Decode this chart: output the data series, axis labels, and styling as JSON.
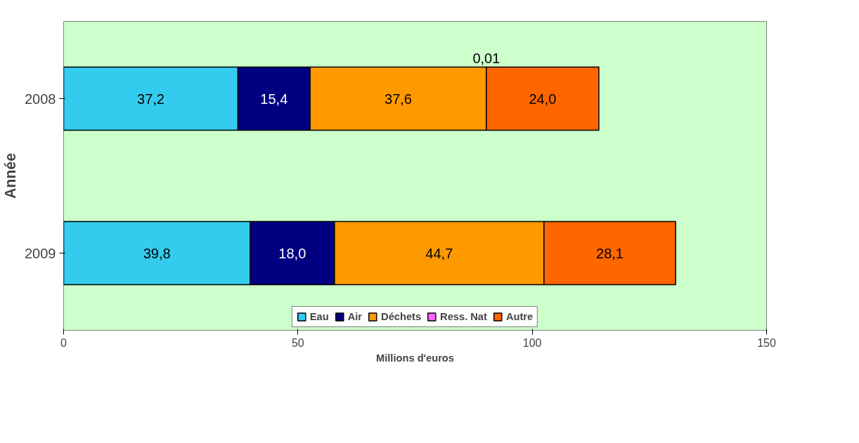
{
  "chart_data": {
    "type": "bar",
    "orientation": "horizontal",
    "stacked": true,
    "categories": [
      "2008",
      "2009"
    ],
    "xlabel": "Millions d'euros",
    "ylabel": "Année",
    "xlim": [
      0,
      150
    ],
    "xticks": [
      0,
      50,
      100,
      150
    ],
    "series": [
      {
        "name": "Eau",
        "color": "#33ccee",
        "values": [
          37.2,
          39.8
        ],
        "value_labels": [
          "37,2",
          "39,8"
        ]
      },
      {
        "name": "Air",
        "color": "#000080",
        "values": [
          15.4,
          18.0
        ],
        "value_labels": [
          "15,4",
          "18,0"
        ]
      },
      {
        "name": "Déchets",
        "color": "#ff9900",
        "values": [
          37.6,
          44.7
        ],
        "value_labels": [
          "37,6",
          "44,7"
        ]
      },
      {
        "name": "Ress. Nat",
        "color": "#ff66ff",
        "values": [
          0.01,
          null
        ],
        "value_labels": [
          "0,01",
          null
        ]
      },
      {
        "name": "Autre",
        "color": "#ff6600",
        "values": [
          24.0,
          28.1
        ],
        "value_labels": [
          "24,0",
          "28,1"
        ]
      }
    ],
    "grid": false,
    "legend": "bottom"
  }
}
